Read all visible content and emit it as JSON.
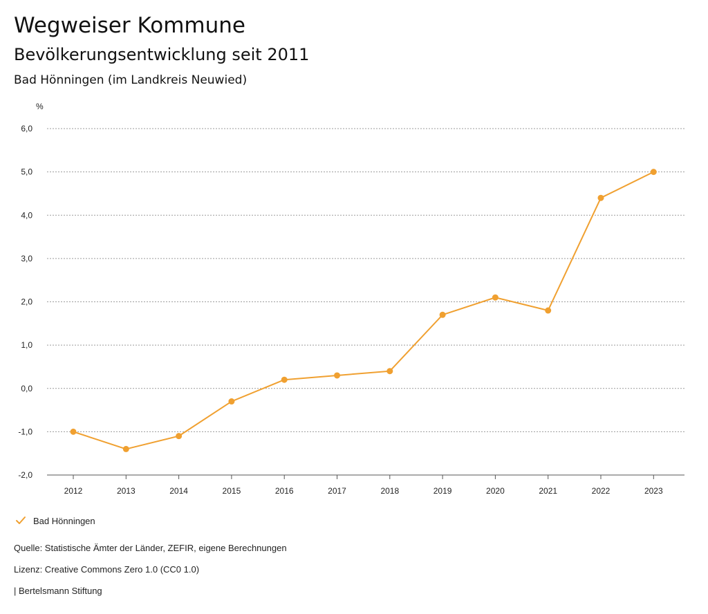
{
  "header": {
    "title": "Wegweiser Kommune",
    "subtitle": "Bevölkerungsentwicklung seit 2011",
    "region": "Bad Hönningen (im Landkreis Neuwied)"
  },
  "chart_data": {
    "type": "line",
    "title": "Bevölkerungsentwicklung seit 2011",
    "xlabel": "",
    "ylabel": "%",
    "x": [
      "2012",
      "2013",
      "2014",
      "2015",
      "2016",
      "2017",
      "2018",
      "2019",
      "2020",
      "2021",
      "2022",
      "2023"
    ],
    "series": [
      {
        "name": "Bad Hönningen",
        "color": "#f0a030",
        "values": [
          -1.0,
          -1.4,
          -1.1,
          -0.3,
          0.2,
          0.3,
          0.4,
          1.7,
          2.1,
          1.8,
          4.4,
          5.0
        ]
      }
    ],
    "ylim": [
      -2.0,
      6.0
    ],
    "yticks": [
      6.0,
      5.0,
      4.0,
      3.0,
      2.0,
      1.0,
      0.0,
      -1.0,
      -2.0
    ],
    "ytick_labels": [
      "6,0",
      "5,0",
      "4,0",
      "3,0",
      "2,0",
      "1,0",
      "0,0",
      "-1,0",
      "-2,0"
    ],
    "grid": true,
    "legend_position": "bottom-left"
  },
  "legend": {
    "label": "Bad Hönningen"
  },
  "footer": {
    "source": "Quelle: Statistische Ämter der Länder, ZEFIR, eigene Berechnungen",
    "license": "Lizenz: Creative Commons Zero 1.0 (CC0 1.0)",
    "brand": "| Bertelsmann Stiftung"
  }
}
